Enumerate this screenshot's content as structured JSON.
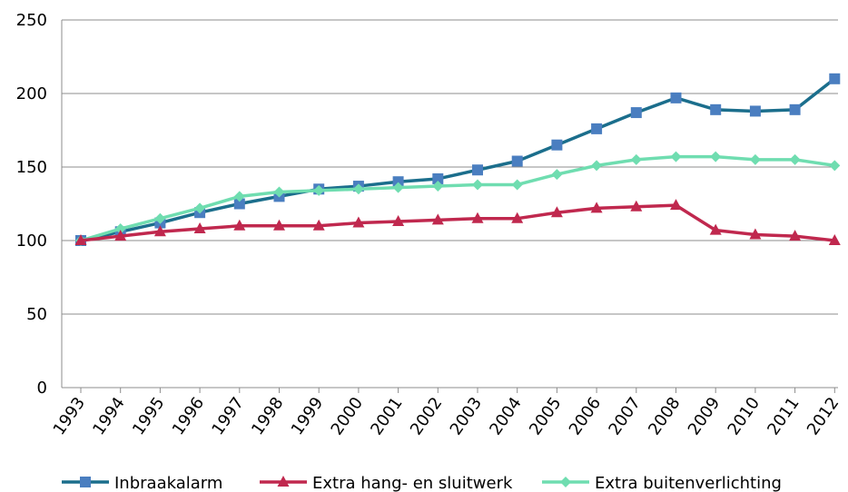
{
  "chart_data": {
    "type": "line",
    "title": "",
    "xlabel": "",
    "ylabel": "",
    "x": [
      "1993",
      "1994",
      "1995",
      "1996",
      "1997",
      "1998",
      "1999",
      "2000",
      "2001",
      "2002",
      "2003",
      "2004",
      "2005",
      "2006",
      "2007",
      "2008",
      "2009",
      "2010",
      "2011",
      "2012"
    ],
    "ylim": [
      0,
      250
    ],
    "yticks": [
      0,
      50,
      100,
      150,
      200,
      250
    ],
    "grid": "horizontal",
    "legend_position": "bottom",
    "series": [
      {
        "name": "Inbraakalarm",
        "color": "#1B6E8C",
        "marker_color": "#4A7EC0",
        "marker": "square",
        "values": [
          100,
          106,
          112,
          119,
          125,
          130,
          135,
          137,
          140,
          142,
          148,
          154,
          165,
          176,
          187,
          197,
          189,
          188,
          189,
          210
        ]
      },
      {
        "name": "Extra hang- en sluitwerk",
        "color": "#C0284E",
        "marker_color": "#C0284E",
        "marker": "triangle",
        "values": [
          100,
          103,
          106,
          108,
          110,
          110,
          110,
          112,
          113,
          114,
          115,
          115,
          119,
          122,
          123,
          124,
          107,
          104,
          103,
          100
        ]
      },
      {
        "name": "Extra buitenverlichting",
        "color": "#6FDDB0",
        "marker_color": "#6FDDB0",
        "marker": "diamond",
        "values": [
          100,
          108,
          115,
          122,
          130,
          133,
          134,
          135,
          136,
          137,
          138,
          138,
          145,
          151,
          155,
          157,
          157,
          155,
          155,
          151
        ]
      }
    ]
  }
}
